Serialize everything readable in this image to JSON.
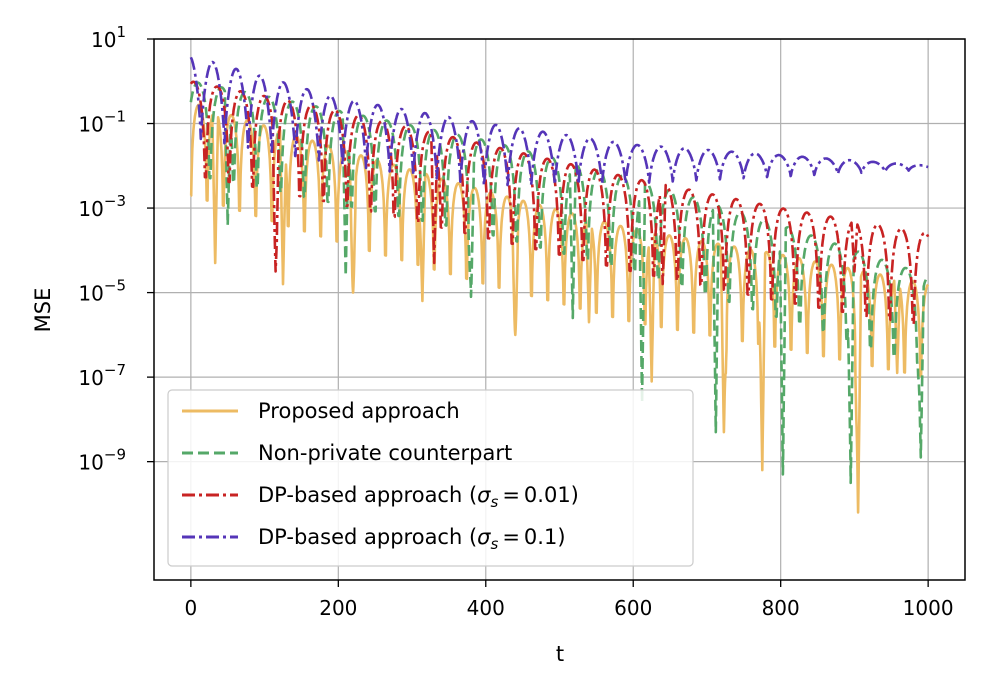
{
  "chart_data": {
    "type": "line",
    "xlabel": "t",
    "ylabel": "MSE",
    "xlim": [
      -50,
      1050
    ],
    "ylim_log10": [
      -11.8,
      1
    ],
    "y_scale": "log",
    "grid": true,
    "legend_position": "lower-left",
    "x_ticks": [
      0,
      200,
      400,
      600,
      800,
      1000
    ],
    "y_ticks": [
      {
        "base": "10",
        "exp": "1",
        "log10": 1
      },
      {
        "base": "10",
        "exp": "−1",
        "log10": -1
      },
      {
        "base": "10",
        "exp": "−3",
        "log10": -3
      },
      {
        "base": "10",
        "exp": "−5",
        "log10": -5
      },
      {
        "base": "10",
        "exp": "−7",
        "log10": -7
      },
      {
        "base": "10",
        "exp": "−9",
        "log10": -9
      }
    ],
    "series": [
      {
        "name": "Proposed approach",
        "color": "#EDBB63",
        "dash": "solid",
        "period": 22,
        "envelope": {
          "t": [
            0,
            200,
            400,
            600,
            800,
            1000
          ],
          "peak_log10": [
            -0.5,
            -1.6,
            -2.6,
            -3.5,
            -4.1,
            -4.8
          ]
        },
        "dips": [
          {
            "t": 33,
            "log10": -4.3
          },
          {
            "t": 125,
            "log10": -4.8
          },
          {
            "t": 220,
            "log10": -5
          },
          {
            "t": 314,
            "log10": -5.2
          },
          {
            "t": 440,
            "log10": -6
          },
          {
            "t": 540,
            "log10": -5.7
          },
          {
            "t": 625,
            "log10": -7.1
          },
          {
            "t": 723,
            "log10": -8.3
          },
          {
            "t": 775,
            "log10": -9.2
          },
          {
            "t": 905,
            "log10": -10.2
          },
          {
            "t": 958,
            "log10": -6.9
          }
        ]
      },
      {
        "name": "Non-private counterpart",
        "color": "#55A868",
        "dash": "dashed",
        "period": 32,
        "envelope": {
          "t": [
            0,
            200,
            400,
            600,
            800,
            1000
          ],
          "peak_log10": [
            0,
            -0.7,
            -1.4,
            -2.3,
            -3.4,
            -4.6
          ]
        },
        "dips": [
          {
            "t": 50,
            "log10": -3.4
          },
          {
            "t": 210,
            "log10": -4.6
          },
          {
            "t": 380,
            "log10": -5.1
          },
          {
            "t": 518,
            "log10": -5.6
          },
          {
            "t": 612,
            "log10": -7.6
          },
          {
            "t": 712,
            "log10": -8.3
          },
          {
            "t": 803,
            "log10": -9.3
          },
          {
            "t": 895,
            "log10": -9.5
          },
          {
            "t": 990,
            "log10": -8.9
          }
        ]
      },
      {
        "name": "DP-based approach (σs = 0.01)",
        "color": "#C82323",
        "dash": "dashdot",
        "period": 32,
        "envelope": {
          "t": [
            0,
            200,
            400,
            600,
            800,
            1000
          ],
          "peak_log10": [
            0,
            -0.7,
            -1.5,
            -2.3,
            -3.0,
            -3.6
          ]
        },
        "dips": [
          {
            "t": 115,
            "log10": -4.5
          },
          {
            "t": 330,
            "log10": -4.3
          },
          {
            "t": 640,
            "log10": -4.8
          },
          {
            "t": 900,
            "log10": -4.5
          }
        ]
      },
      {
        "name": "DP-based approach (σs = 0.1)",
        "color": "#5535B8",
        "dash": "dashdot",
        "period": 32,
        "envelope": {
          "t": [
            0,
            200,
            400,
            600,
            800,
            1000
          ],
          "peak_log10": [
            0.6,
            -0.4,
            -1.0,
            -1.5,
            -1.75,
            -2
          ]
        },
        "floor_log10": {
          "t": [
            0,
            200,
            400,
            600,
            800,
            1000
          ],
          "v": [
            -1.5,
            -2.1,
            -2.6,
            -2.5,
            -2.3,
            -2.1
          ]
        }
      }
    ],
    "legend": {
      "items": [
        {
          "prefix": "Proposed approach",
          "sigma_value": ""
        },
        {
          "prefix": "Non-private counterpart",
          "sigma_value": ""
        },
        {
          "prefix": "DP-based approach (",
          "sigma_value": "0.01)"
        },
        {
          "prefix": "DP-based approach (",
          "sigma_value": "0.1)"
        }
      ],
      "sigma_symbol": "σ",
      "sigma_sub": "s",
      "equals": "="
    }
  }
}
